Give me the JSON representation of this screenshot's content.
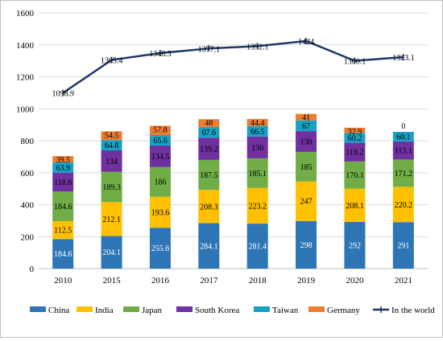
{
  "chart_data": {
    "type": "bar",
    "stacked": true,
    "categories": [
      "2010",
      "2015",
      "2016",
      "2017",
      "2018",
      "2019",
      "2020",
      "2021"
    ],
    "series": [
      {
        "name": "China",
        "color": "#2e75b6",
        "values": [
          184.6,
          204.1,
          255.6,
          284.1,
          281.4,
          298,
          292,
          291
        ]
      },
      {
        "name": "India",
        "color": "#ffc000",
        "values": [
          112.5,
          212.1,
          193.6,
          208.3,
          223.2,
          247,
          208.1,
          220.2
        ]
      },
      {
        "name": "Japan",
        "color": "#70ad47",
        "values": [
          184.6,
          189.3,
          186,
          187.5,
          185.1,
          185,
          170.1,
          171.2
        ]
      },
      {
        "name": "South Korea",
        "color": "#7030a0",
        "values": [
          118.6,
          134,
          134.5,
          139.2,
          136,
          130,
          118.2,
          113.1
        ]
      },
      {
        "name": "Taiwan",
        "color": "#17a2c4",
        "values": [
          63.9,
          64.8,
          65.6,
          67.6,
          66.5,
          67,
          60.2,
          60.1
        ]
      },
      {
        "name": "Germany",
        "color": "#ed7d31",
        "values": [
          39.5,
          54.5,
          57.8,
          48,
          44.4,
          41,
          32.9,
          0
        ]
      }
    ],
    "line_series": {
      "name": "In the world",
      "color": "#1f3864",
      "values": [
        1098.9,
        1305.4,
        1348.3,
        1377.1,
        1392.1,
        1424,
        1300.1,
        1323.1
      ]
    },
    "ylim": [
      0,
      1600
    ],
    "yticks": [
      0,
      200,
      400,
      600,
      800,
      1000,
      1200,
      1400,
      1600
    ],
    "grid": true,
    "legend": "bottom"
  }
}
